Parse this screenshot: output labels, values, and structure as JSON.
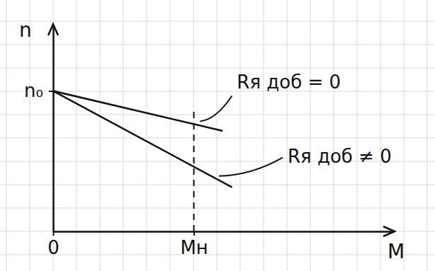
{
  "chart_data": {
    "type": "line",
    "x_label": "М",
    "y_label": "n",
    "xlim": [
      0,
      14.5
    ],
    "ylim": [
      0,
      8.8
    ],
    "xticks": [
      0,
      {
        "value": 6,
        "label": "Мн"
      }
    ],
    "yticks": [
      {
        "value": 6,
        "label": "n₀"
      }
    ],
    "series": [
      {
        "name": "Rя доб = 0",
        "color": "#111111",
        "x": [
          0,
          7.2
        ],
        "values": [
          6,
          4.3
        ]
      },
      {
        "name": "Rя доб ≠ 0",
        "color": "#111111",
        "x": [
          0,
          7.6
        ],
        "values": [
          6,
          1.9
        ]
      }
    ]
  }
}
